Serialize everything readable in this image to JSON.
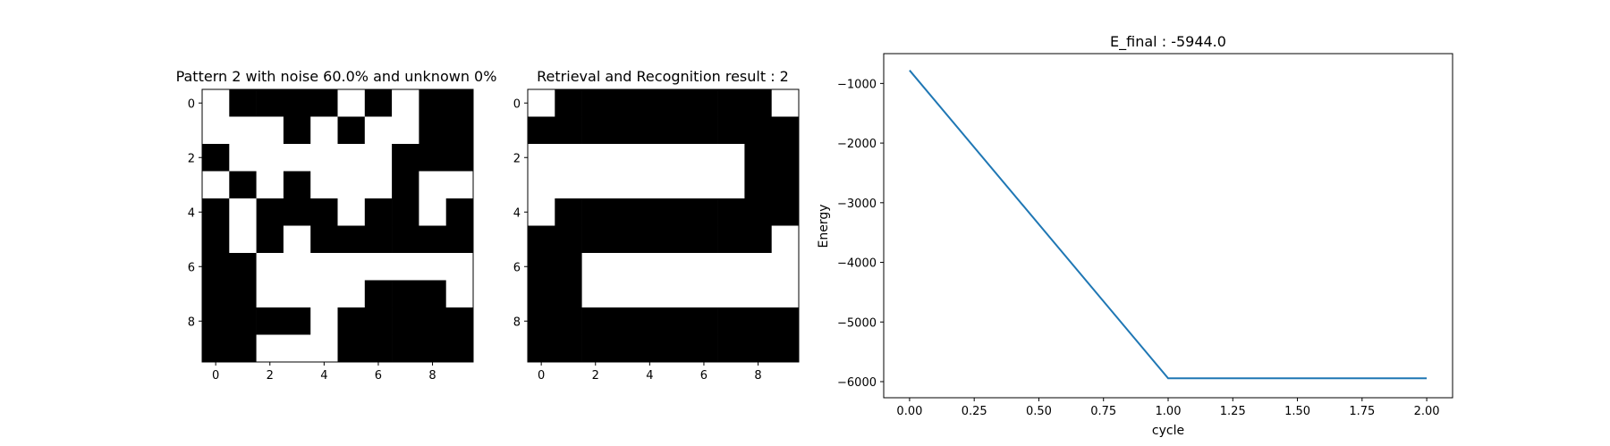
{
  "chart_data": [
    {
      "type": "heatmap",
      "title": "Pattern 2 with noise 60.0% and unknown 0%",
      "x_ticks": [
        "0",
        "2",
        "4",
        "6",
        "8"
      ],
      "y_ticks": [
        "0",
        "2",
        "4",
        "6",
        "8"
      ],
      "colormap": {
        "0": "#000000",
        "1": "#ffffff"
      },
      "grid": false,
      "values": [
        [
          1,
          0,
          0,
          0,
          0,
          1,
          0,
          1,
          0,
          0
        ],
        [
          1,
          1,
          1,
          0,
          1,
          0,
          1,
          1,
          0,
          0
        ],
        [
          0,
          1,
          1,
          1,
          1,
          1,
          1,
          0,
          0,
          0
        ],
        [
          1,
          0,
          1,
          0,
          1,
          1,
          1,
          0,
          1,
          1
        ],
        [
          0,
          1,
          0,
          0,
          0,
          1,
          0,
          0,
          1,
          0
        ],
        [
          0,
          1,
          0,
          1,
          0,
          0,
          0,
          0,
          0,
          0
        ],
        [
          0,
          0,
          1,
          1,
          1,
          1,
          1,
          1,
          1,
          1
        ],
        [
          0,
          0,
          1,
          1,
          1,
          1,
          0,
          0,
          0,
          1
        ],
        [
          0,
          0,
          0,
          0,
          1,
          0,
          0,
          0,
          0,
          0
        ],
        [
          0,
          0,
          1,
          1,
          1,
          0,
          0,
          0,
          0,
          0
        ]
      ]
    },
    {
      "type": "heatmap",
      "title": "Retrieval and Recognition result : 2",
      "x_ticks": [
        "0",
        "2",
        "4",
        "6",
        "8"
      ],
      "y_ticks": [
        "0",
        "2",
        "4",
        "6",
        "8"
      ],
      "colormap": {
        "0": "#000000",
        "1": "#ffffff"
      },
      "grid": false,
      "values": [
        [
          1,
          0,
          0,
          0,
          0,
          0,
          0,
          0,
          0,
          1
        ],
        [
          0,
          0,
          0,
          0,
          0,
          0,
          0,
          0,
          0,
          0
        ],
        [
          1,
          1,
          1,
          1,
          1,
          1,
          1,
          1,
          0,
          0
        ],
        [
          1,
          1,
          1,
          1,
          1,
          1,
          1,
          1,
          0,
          0
        ],
        [
          1,
          0,
          0,
          0,
          0,
          0,
          0,
          0,
          0,
          0
        ],
        [
          0,
          0,
          0,
          0,
          0,
          0,
          0,
          0,
          0,
          1
        ],
        [
          0,
          0,
          1,
          1,
          1,
          1,
          1,
          1,
          1,
          1
        ],
        [
          0,
          0,
          1,
          1,
          1,
          1,
          1,
          1,
          1,
          1
        ],
        [
          0,
          0,
          0,
          0,
          0,
          0,
          0,
          0,
          0,
          0
        ],
        [
          0,
          0,
          0,
          0,
          0,
          0,
          0,
          0,
          0,
          0
        ]
      ]
    },
    {
      "type": "line",
      "title": "E_final : -5944.0",
      "xlabel": "cycle",
      "ylabel": "Energy",
      "xlim": [
        -0.1,
        2.1
      ],
      "ylim": [
        -6270,
        -500
      ],
      "x_ticks": [
        0.0,
        0.25,
        0.5,
        0.75,
        1.0,
        1.25,
        1.5,
        1.75,
        2.0
      ],
      "x_tick_labels": [
        "0.00",
        "0.25",
        "0.50",
        "0.75",
        "1.00",
        "1.25",
        "1.50",
        "1.75",
        "2.00"
      ],
      "y_ticks": [
        -1000,
        -2000,
        -3000,
        -4000,
        -5000,
        -6000
      ],
      "y_tick_labels": [
        "−1000",
        "−2000",
        "−3000",
        "−4000",
        "−5000",
        "−6000"
      ],
      "grid": false,
      "series": [
        {
          "x": [
            0,
            1,
            2
          ],
          "values": [
            -780,
            -5944,
            -5944
          ],
          "color": "#1f77b4"
        }
      ]
    }
  ]
}
